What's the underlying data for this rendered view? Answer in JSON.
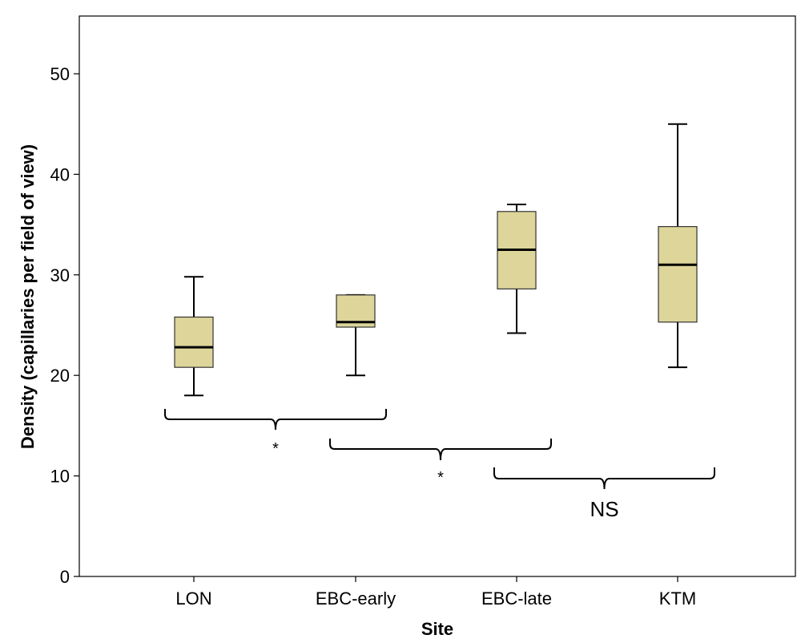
{
  "chart_data": {
    "type": "boxplot",
    "xlabel": "Site",
    "ylabel": "Density (capillaries per field of view)",
    "ylim": [
      0,
      55
    ],
    "yticks": [
      0,
      10,
      20,
      30,
      40,
      50
    ],
    "categories": [
      "LON",
      "EBC-early",
      "EBC-late",
      "KTM"
    ],
    "boxes": [
      {
        "category": "LON",
        "min": 18,
        "q1": 20.8,
        "median": 22.8,
        "q3": 25.8,
        "max": 29.8
      },
      {
        "category": "EBC-early",
        "min": 20,
        "q1": 24.8,
        "median": 25.3,
        "q3": 28,
        "max": 28
      },
      {
        "category": "EBC-late",
        "min": 24.2,
        "q1": 28.6,
        "median": 32.5,
        "q3": 36.3,
        "max": 37
      },
      {
        "category": "KTM",
        "min": 20.8,
        "q1": 25.3,
        "median": 31,
        "q3": 34.8,
        "max": 45
      }
    ],
    "comparisons": [
      {
        "from": "LON",
        "to": "EBC-early",
        "label": "*"
      },
      {
        "from": "EBC-early",
        "to": "EBC-late",
        "label": "*"
      },
      {
        "from": "EBC-late",
        "to": "KTM",
        "label": "NS"
      }
    ],
    "grid": false
  },
  "colors": {
    "box_fill": "#ddd59a",
    "box_stroke": "#333333",
    "axis": "#000000"
  }
}
